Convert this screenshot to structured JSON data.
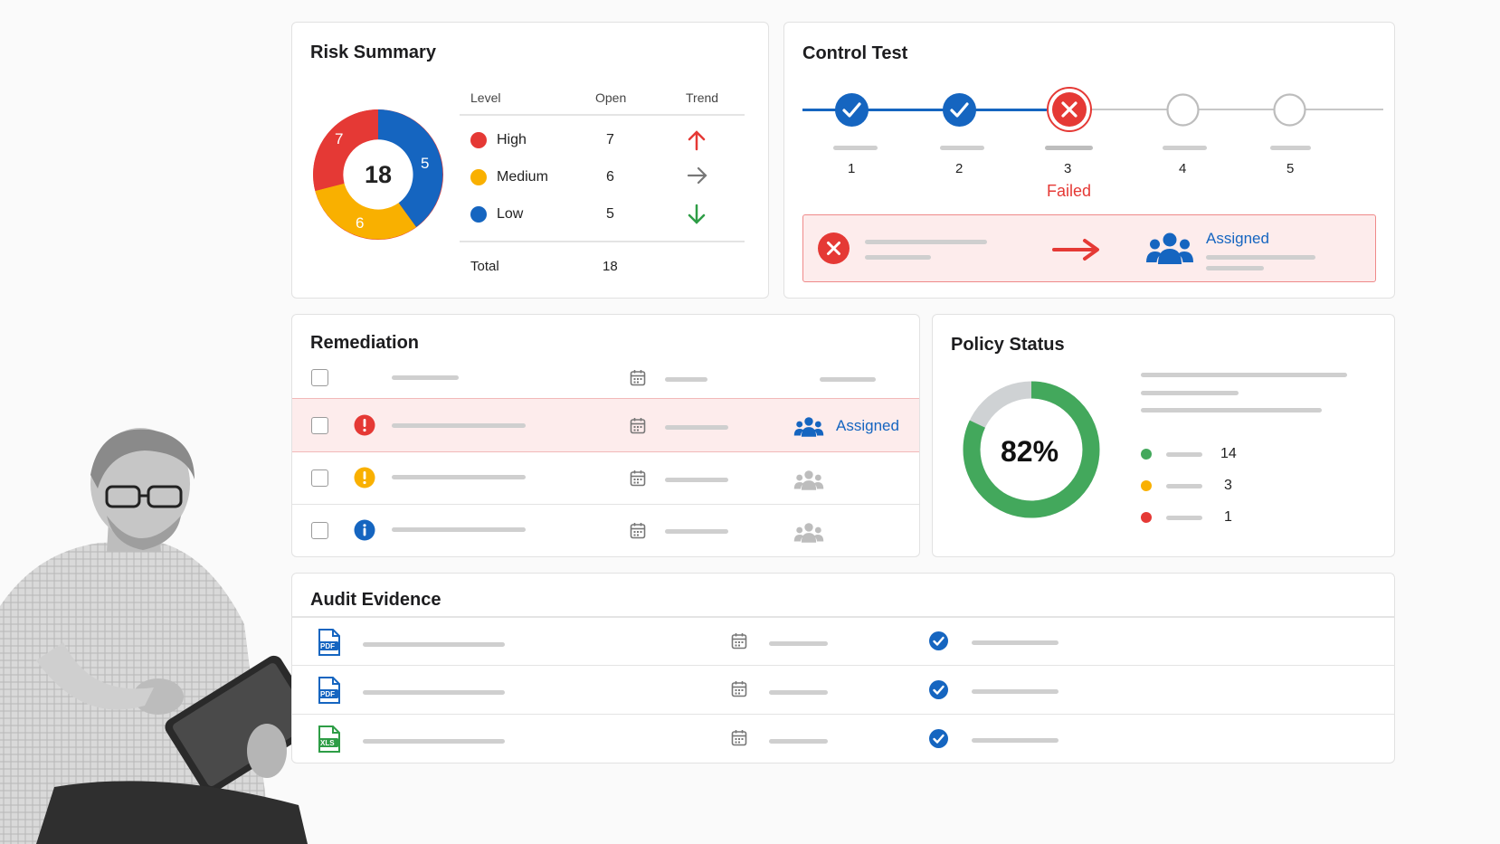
{
  "risk_summary": {
    "title": "Risk Summary",
    "total_center": "18",
    "donut_labels": {
      "high": "7",
      "low": "5",
      "medium": "6"
    },
    "columns": {
      "level": "Level",
      "open": "Open",
      "trend": "Trend"
    },
    "rows": [
      {
        "level": "High",
        "open": "7",
        "trend": "up",
        "color": "#e53935"
      },
      {
        "level": "Medium",
        "open": "6",
        "trend": "flat",
        "color": "#f9b000"
      },
      {
        "level": "Low",
        "open": "5",
        "trend": "down",
        "color": "#1565c0"
      }
    ],
    "total_label": "Total",
    "total_value": "18"
  },
  "control_test": {
    "title": "Control Test",
    "steps": [
      {
        "label": "1",
        "status": "passed"
      },
      {
        "label": "2",
        "status": "passed"
      },
      {
        "label": "3",
        "status": "failed"
      },
      {
        "label": "4",
        "status": "pending"
      },
      {
        "label": "5",
        "status": "pending"
      }
    ],
    "failed_label": "Failed",
    "alert_assigned": "Assigned"
  },
  "remediation": {
    "title": "Remediation",
    "assigned_label": "Assigned"
  },
  "policy_status": {
    "title": "Policy Status",
    "percent": "82%",
    "legend": [
      {
        "value": "14",
        "color": "#43a85c"
      },
      {
        "value": "3",
        "color": "#f9b000"
      },
      {
        "value": "1",
        "color": "#e53935"
      }
    ]
  },
  "audit_evidence": {
    "title": "Audit Evidence",
    "files": [
      {
        "type": "PDF"
      },
      {
        "type": "PDF"
      },
      {
        "type": "XLS"
      }
    ]
  },
  "colors": {
    "red": "#e53935",
    "blue": "#1565c0",
    "yellow": "#f9b000",
    "green": "#43a85c"
  }
}
